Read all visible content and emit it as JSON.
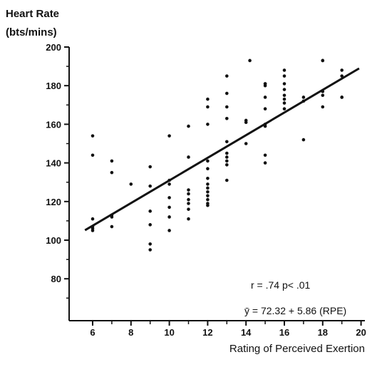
{
  "chart_data": {
    "type": "scatter",
    "title": "",
    "ylabel_line1": "Heart Rate",
    "ylabel_line2": "(bts/mins)",
    "xlabel": "Rating of Perceived Exertion",
    "xlim": [
      5,
      20
    ],
    "ylim": [
      60,
      200
    ],
    "xticks": [
      6,
      8,
      10,
      12,
      14,
      16,
      18,
      20
    ],
    "yticks": [
      80,
      100,
      120,
      140,
      160,
      180,
      200
    ],
    "grid": false,
    "points": [
      [
        6,
        154
      ],
      [
        6,
        144
      ],
      [
        6,
        111
      ],
      [
        6,
        107
      ],
      [
        6,
        106
      ],
      [
        6,
        105
      ],
      [
        7,
        141
      ],
      [
        7,
        135
      ],
      [
        7,
        113
      ],
      [
        7,
        112
      ],
      [
        7,
        107
      ],
      [
        8,
        129
      ],
      [
        9,
        138
      ],
      [
        9,
        128
      ],
      [
        9,
        115
      ],
      [
        9,
        108
      ],
      [
        9,
        98
      ],
      [
        9,
        95
      ],
      [
        10,
        154
      ],
      [
        10,
        131
      ],
      [
        10,
        129
      ],
      [
        10,
        122
      ],
      [
        10,
        117
      ],
      [
        10,
        112
      ],
      [
        10,
        105
      ],
      [
        11,
        159
      ],
      [
        11,
        143
      ],
      [
        11,
        126
      ],
      [
        11,
        124
      ],
      [
        11,
        121
      ],
      [
        11,
        119
      ],
      [
        11,
        116
      ],
      [
        11,
        111
      ],
      [
        12,
        173
      ],
      [
        12,
        169
      ],
      [
        12,
        160
      ],
      [
        12,
        141
      ],
      [
        12,
        137
      ],
      [
        12,
        132
      ],
      [
        12,
        129
      ],
      [
        12,
        127
      ],
      [
        12,
        125
      ],
      [
        12,
        123
      ],
      [
        12,
        121
      ],
      [
        12,
        119
      ],
      [
        12,
        118
      ],
      [
        13,
        185
      ],
      [
        13,
        176
      ],
      [
        13,
        169
      ],
      [
        13,
        163
      ],
      [
        13,
        151
      ],
      [
        13,
        145
      ],
      [
        13,
        143
      ],
      [
        13,
        141
      ],
      [
        13,
        139
      ],
      [
        13,
        131
      ],
      [
        14,
        162
      ],
      [
        14,
        161
      ],
      [
        14,
        150
      ],
      [
        14.2,
        193
      ],
      [
        15,
        181
      ],
      [
        15,
        181
      ],
      [
        15,
        180
      ],
      [
        15,
        174
      ],
      [
        15,
        168
      ],
      [
        15,
        160
      ],
      [
        15,
        159
      ],
      [
        15,
        144
      ],
      [
        15,
        140
      ],
      [
        16,
        188
      ],
      [
        16,
        185
      ],
      [
        16,
        181
      ],
      [
        16,
        178
      ],
      [
        16,
        175
      ],
      [
        16,
        173
      ],
      [
        16,
        171
      ],
      [
        16,
        168
      ],
      [
        17,
        174
      ],
      [
        17,
        172
      ],
      [
        17,
        152
      ],
      [
        18,
        193
      ],
      [
        18,
        193
      ],
      [
        18,
        177
      ],
      [
        18,
        175
      ],
      [
        18,
        169
      ],
      [
        19,
        188
      ],
      [
        19,
        185
      ],
      [
        19,
        174
      ],
      [
        19,
        174
      ]
    ],
    "regression": {
      "intercept": 72.32,
      "slope": 5.86,
      "x_range": [
        5.6,
        19.9
      ]
    },
    "annotations": {
      "stats": "r = .74  p< .01",
      "equation": "ȳ = 72.32 + 5.86 (RPE)"
    }
  }
}
